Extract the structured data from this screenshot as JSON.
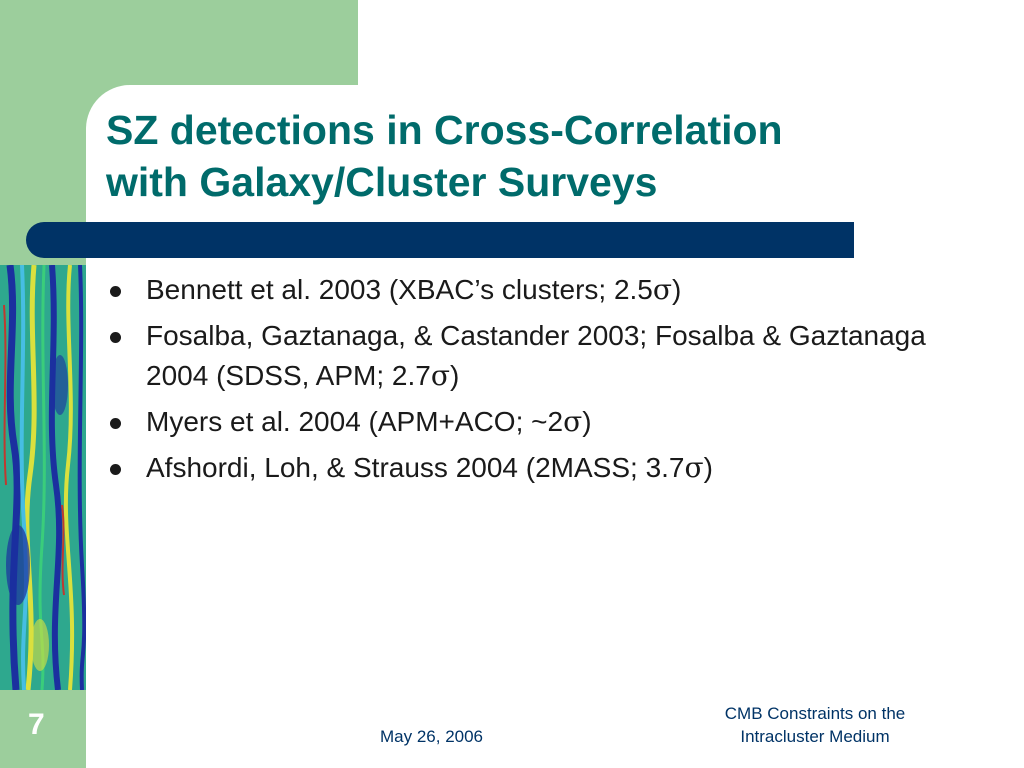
{
  "slide": {
    "title_lines": [
      "SZ detections in Cross-Correlation",
      "with Galaxy/Cluster Surveys"
    ],
    "bullets": [
      {
        "text": "Bennett et al. 2003 (XBAC’s clusters; 2.5",
        "sigma": "σ",
        "end": ")"
      },
      {
        "text": "Fosalba, Gaztanaga, & Castander 2003; Fosalba & Gaztanaga 2004 (SDSS, APM; 2.7",
        "sigma": "σ",
        "end": ")"
      },
      {
        "text": "Myers et al. 2004 (APM+ACO; ~2",
        "sigma": "σ",
        "end": ")"
      },
      {
        "text": "Afshordi, Loh, & Strauss 2004 (2MASS; 3.7",
        "sigma": "σ",
        "end": ")"
      }
    ],
    "page_number": "7",
    "footer_date": "May 26, 2006",
    "footer_title_lines": [
      "CMB Constraints on the",
      "Intracluster Medium"
    ]
  },
  "colors": {
    "title": "#006b6b",
    "accent_green": "#9cce9c",
    "navy_bar": "#003366",
    "footer_text": "#003366"
  },
  "icons": [
    "bullet-dot-icon",
    "cmb-map-image"
  ]
}
